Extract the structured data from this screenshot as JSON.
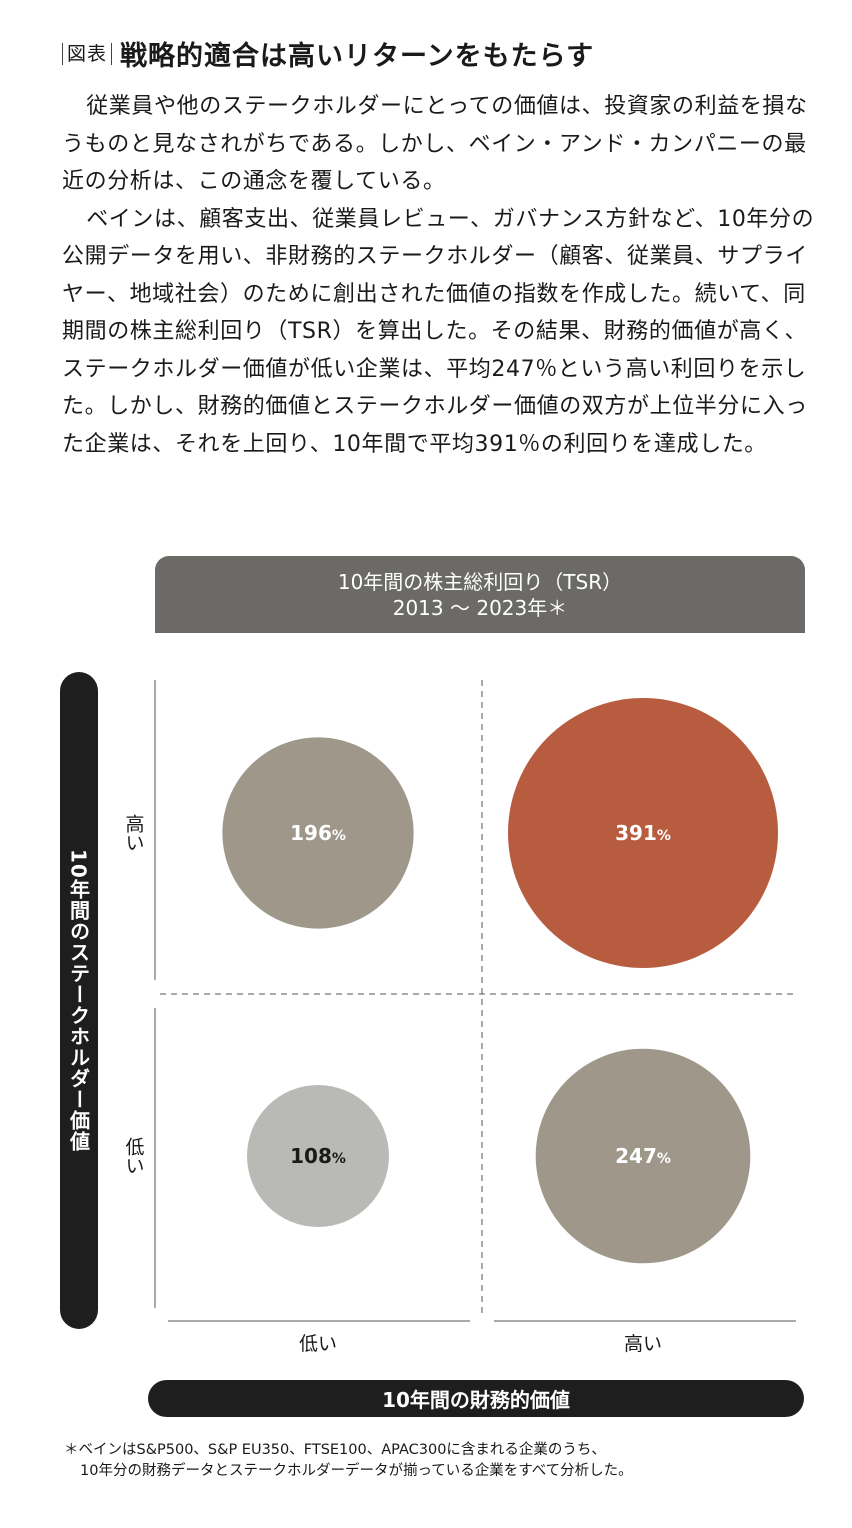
{
  "heading": {
    "tag": "図表",
    "title": "戦略的適合は高いリターンをもたらす"
  },
  "body": {
    "p1": "従業員や他のステークホルダーにとっての価値は、投資家の利益を損なうものと見なされがちである。しかし、ベイン・アンド・カンパニーの最近の分析は、この通念を覆している。",
    "p2": "ベインは、顧客支出、従業員レビュー、ガバナンス方針など、10年分の公開データを用い、非財務的ステークホルダー（顧客、従業員、サプライヤー、地域社会）のために創出された価値の指数を作成した。続いて、同期間の株主総利回り（TSR）を算出した。その結果、財務的価値が高く、ステークホルダー価値が低い企業は、平均247％という高い利回りを示した。しかし、財務的価値とステークホルダー価値の双方が上位半分に入った企業は、それを上回り、10年間で平均391％の利回りを達成した。"
  },
  "chart_data": {
    "type": "bubble",
    "title": "10年間の株主総利回り（TSR）",
    "subtitle": "2013 〜 2023年＊",
    "xlabel": "10年間の財務的価値",
    "ylabel": "10年間のステークホルダー価値",
    "x_categories": [
      "低い",
      "高い"
    ],
    "y_categories": [
      "高い",
      "低い"
    ],
    "points": [
      {
        "x": "低い",
        "y": "高い",
        "value": 196,
        "label": "196",
        "color": "#9e978a"
      },
      {
        "x": "高い",
        "y": "高い",
        "value": 391,
        "label": "391",
        "color": "#b85c40"
      },
      {
        "x": "低い",
        "y": "低い",
        "value": 108,
        "label": "108",
        "color": "#b9b9b5"
      },
      {
        "x": "高い",
        "y": "低い",
        "value": 247,
        "label": "247",
        "color": "#9e978a"
      }
    ],
    "unit": "%"
  },
  "footnote": {
    "line1": "＊ベインはS&P500、S&P EU350、FTSE100、APAC300に含まれる企業のうち、",
    "line2": "10年分の財務データとステークホルダーデータが揃っている企業をすべて分析した。"
  }
}
